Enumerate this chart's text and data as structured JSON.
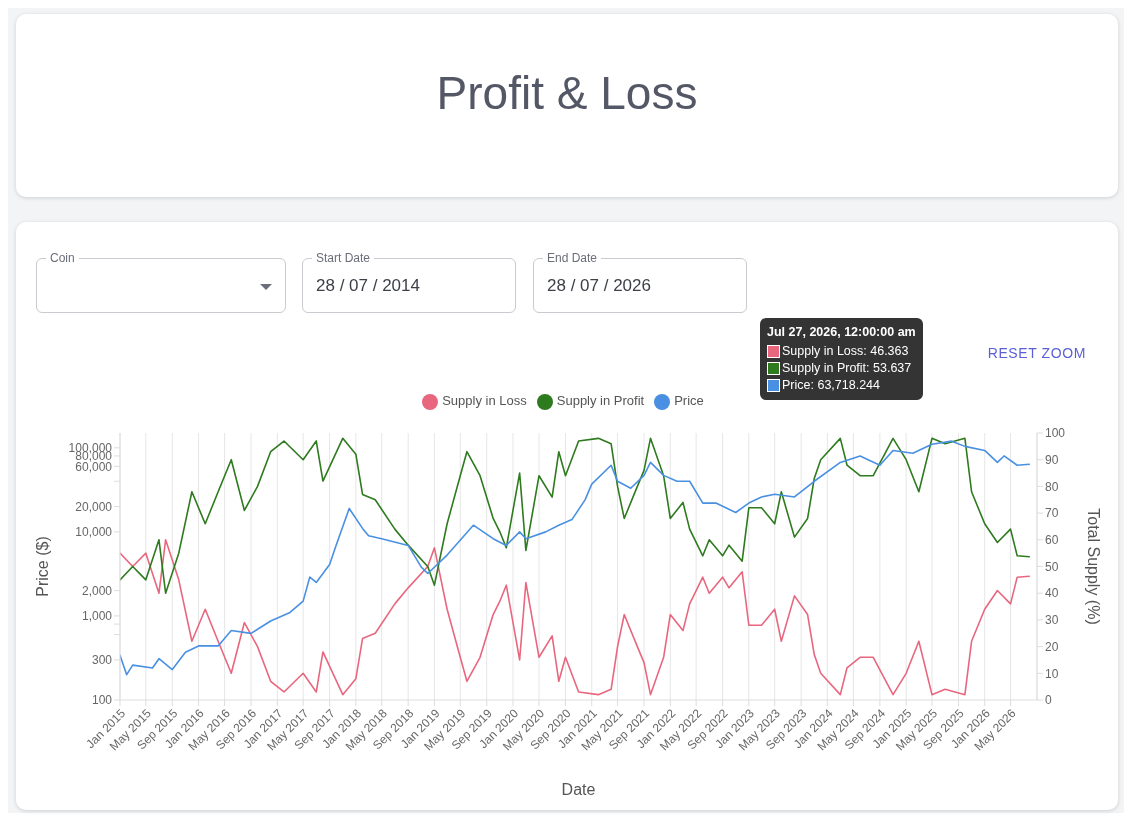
{
  "chart_data": {
    "type": "line",
    "title": "Profit & Loss",
    "xlabel": "Date",
    "ylabel": "Price ($)",
    "y2label": "Total Supply (%)",
    "annotations": [
      "Coin",
      "Start Date",
      "28 / 07 / 2014",
      "End Date",
      "28 / 07 / 2026",
      "RESET ZOOM",
      "Jul 27, 2026, 12:00:00 am",
      "Supply in Loss: 46.363",
      "Supply in Profit: 53.637",
      "Price: 63,718.244"
    ],
    "x": [
      "2015-01",
      "2015-03",
      "2015-05",
      "2015-07",
      "2015-08",
      "2015-10",
      "2015-12",
      "2016-02",
      "2016-04",
      "2016-06",
      "2016-08",
      "2016-10",
      "2016-12",
      "2017-02",
      "2017-05",
      "2017-07",
      "2017-08",
      "2017-11",
      "2018-01",
      "2018-02",
      "2018-04",
      "2018-07",
      "2018-09",
      "2018-12",
      "2019-01",
      "2019-03",
      "2019-05",
      "2019-06",
      "2019-08",
      "2019-10",
      "2019-11",
      "2019-12",
      "2020-02",
      "2020-03",
      "2020-05",
      "2020-07",
      "2020-08",
      "2020-09",
      "2020-11",
      "2021-02",
      "2021-04",
      "2021-05",
      "2021-06",
      "2021-08",
      "2021-09",
      "2021-10",
      "2021-12",
      "2022-01",
      "2022-03",
      "2022-04",
      "2022-06",
      "2022-07",
      "2022-09",
      "2022-10",
      "2022-12",
      "2023-01",
      "2023-03",
      "2023-05",
      "2023-06",
      "2023-08",
      "2023-10",
      "2023-11",
      "2023-12",
      "2024-03",
      "2024-04",
      "2024-06",
      "2024-08",
      "2024-11",
      "2025-01",
      "2025-03",
      "2025-05",
      "2025-07",
      "2025-10",
      "2025-11",
      "2026-01",
      "2026-03",
      "2026-05",
      "2026-06",
      "2026-07-27"
    ],
    "series": [
      {
        "name": "Supply in Loss",
        "color": "#e8677f",
        "axis": "y2",
        "values": [
          55,
          50,
          55,
          40,
          60,
          45,
          22,
          34,
          22,
          10,
          29,
          20,
          7,
          3,
          10,
          3,
          18,
          2,
          8,
          23,
          25,
          36,
          42,
          50,
          57,
          34,
          16,
          7,
          16,
          32,
          37,
          43,
          15,
          44,
          16,
          24,
          7,
          16,
          3,
          2,
          4,
          20,
          32,
          20,
          14,
          2,
          16,
          32,
          26,
          36,
          46,
          40,
          46,
          42,
          48,
          28,
          28,
          34,
          22,
          39,
          32,
          17,
          10,
          2,
          12,
          16,
          16,
          2,
          10,
          22,
          2,
          4,
          2,
          22,
          34,
          41,
          36,
          46,
          46.363
        ]
      },
      {
        "name": "Supply in Profit",
        "color": "#2e7a1e",
        "axis": "y2",
        "values": [
          45,
          50,
          45,
          60,
          40,
          55,
          78,
          66,
          78,
          90,
          71,
          80,
          93,
          97,
          90,
          97,
          82,
          98,
          92,
          77,
          75,
          64,
          58,
          50,
          43,
          66,
          84,
          93,
          84,
          68,
          63,
          57,
          85,
          56,
          84,
          76,
          93,
          84,
          97,
          98,
          96,
          80,
          68,
          80,
          86,
          98,
          84,
          68,
          74,
          64,
          54,
          60,
          54,
          58,
          52,
          72,
          72,
          66,
          78,
          61,
          68,
          83,
          90,
          98,
          88,
          84,
          84,
          98,
          90,
          78,
          98,
          96,
          98,
          78,
          66,
          59,
          64,
          54,
          53.637
        ]
      },
      {
        "name": "Price",
        "color": "#4a90e2",
        "axis": "y",
        "x": [
          "2015-01",
          "2015-02",
          "2015-03",
          "2015-06",
          "2015-07",
          "2015-09",
          "2015-11",
          "2016-01",
          "2016-04",
          "2016-06",
          "2016-09",
          "2016-12",
          "2017-03",
          "2017-05",
          "2017-06",
          "2017-07",
          "2017-09",
          "2017-10",
          "2017-12",
          "2018-02",
          "2018-03",
          "2018-05",
          "2018-09",
          "2018-11",
          "2018-12",
          "2019-03",
          "2019-07",
          "2019-10",
          "2019-12",
          "2020-02",
          "2020-03",
          "2020-06",
          "2020-08",
          "2020-10",
          "2020-12",
          "2021-01",
          "2021-04",
          "2021-05",
          "2021-07",
          "2021-09",
          "2021-10",
          "2021-12",
          "2022-02",
          "2022-04",
          "2022-06",
          "2022-08",
          "2022-11",
          "2023-01",
          "2023-03",
          "2023-05",
          "2023-08",
          "2023-11",
          "2024-03",
          "2024-06",
          "2024-09",
          "2024-11",
          "2025-02",
          "2025-05",
          "2025-08",
          "2025-10",
          "2026-01",
          "2026-03",
          "2026-04",
          "2026-06",
          "2026-07-27"
        ],
        "values": [
          340,
          200,
          260,
          240,
          310,
          230,
          370,
          440,
          440,
          670,
          620,
          870,
          1100,
          1500,
          2900,
          2500,
          4100,
          6900,
          19000,
          11000,
          9000,
          8300,
          6900,
          3800,
          3200,
          5300,
          12000,
          8300,
          6900,
          10000,
          8300,
          10000,
          12000,
          14000,
          24000,
          37000,
          62000,
          40000,
          33000,
          47000,
          67000,
          47000,
          40000,
          40000,
          22000,
          22000,
          17000,
          22000,
          26000,
          28000,
          26000,
          40000,
          67000,
          80000,
          62000,
          93000,
          86000,
          110000,
          120000,
          104000,
          93000,
          67000,
          80000,
          62000,
          63718.244
        ]
      }
    ],
    "xlim": [
      "2015-01",
      "2026-09"
    ],
    "xticks": [
      {
        "value": "2015-01",
        "label": "Jan 2015"
      },
      {
        "value": "2015-05",
        "label": "May 2015"
      },
      {
        "value": "2015-09",
        "label": "Sep 2015"
      },
      {
        "value": "2016-01",
        "label": "Jan 2016"
      },
      {
        "value": "2016-05",
        "label": "May 2016"
      },
      {
        "value": "2016-09",
        "label": "Sep 2016"
      },
      {
        "value": "2017-01",
        "label": "Jan 2017"
      },
      {
        "value": "2017-05",
        "label": "May 2017"
      },
      {
        "value": "2017-09",
        "label": "Sep 2017"
      },
      {
        "value": "2018-01",
        "label": "Jan 2018"
      },
      {
        "value": "2018-05",
        "label": "May 2018"
      },
      {
        "value": "2018-09",
        "label": "Sep 2018"
      },
      {
        "value": "2019-01",
        "label": "Jan 2019"
      },
      {
        "value": "2019-05",
        "label": "May 2019"
      },
      {
        "value": "2019-09",
        "label": "Sep 2019"
      },
      {
        "value": "2020-01",
        "label": "Jan 2020"
      },
      {
        "value": "2020-05",
        "label": "May 2020"
      },
      {
        "value": "2020-09",
        "label": "Sep 2020"
      },
      {
        "value": "2021-01",
        "label": "Jan 2021"
      },
      {
        "value": "2021-05",
        "label": "May 2021"
      },
      {
        "value": "2021-09",
        "label": "Sep 2021"
      },
      {
        "value": "2022-01",
        "label": "Jan 2022"
      },
      {
        "value": "2022-05",
        "label": "May 2022"
      },
      {
        "value": "2022-09",
        "label": "Sep 2022"
      },
      {
        "value": "2023-01",
        "label": "Jan 2023"
      },
      {
        "value": "2023-05",
        "label": "May 2023"
      },
      {
        "value": "2023-09",
        "label": "Sep 2023"
      },
      {
        "value": "2024-01",
        "label": "Jan 2024"
      },
      {
        "value": "2024-05",
        "label": "May 2024"
      },
      {
        "value": "2024-09",
        "label": "Sep 2024"
      },
      {
        "value": "2025-01",
        "label": "Jan 2025"
      },
      {
        "value": "2025-05",
        "label": "May 2025"
      },
      {
        "value": "2025-09",
        "label": "Sep 2025"
      },
      {
        "value": "2026-01",
        "label": "Jan 2026"
      },
      {
        "value": "2026-05",
        "label": "May 2026"
      }
    ],
    "ylim": [
      100,
      150000
    ],
    "yticks": [
      100,
      {
        "value": 300,
        "label": "300"
      },
      {
        "value": 600,
        "label": null
      },
      {
        "value": 800,
        "label": null
      },
      {
        "value": 1000,
        "label": "1,000"
      },
      {
        "value": 2000,
        "label": "2,000"
      },
      {
        "value": 10000,
        "label": "10,000"
      },
      {
        "value": 20000,
        "label": "20,000"
      },
      {
        "value": 40000,
        "label": null
      },
      {
        "value": 60000,
        "label": "60,000"
      },
      {
        "value": 80000,
        "label": "80,000"
      },
      {
        "value": 100000,
        "label": "100,000"
      }
    ],
    "y2lim": [
      0,
      100
    ],
    "y2ticks": [
      0,
      10,
      20,
      30,
      40,
      50,
      60,
      70,
      80,
      90,
      100
    ],
    "log": "y",
    "grid": "x",
    "legend": "top",
    "marker": "none",
    "line_style": "solid"
  }
}
